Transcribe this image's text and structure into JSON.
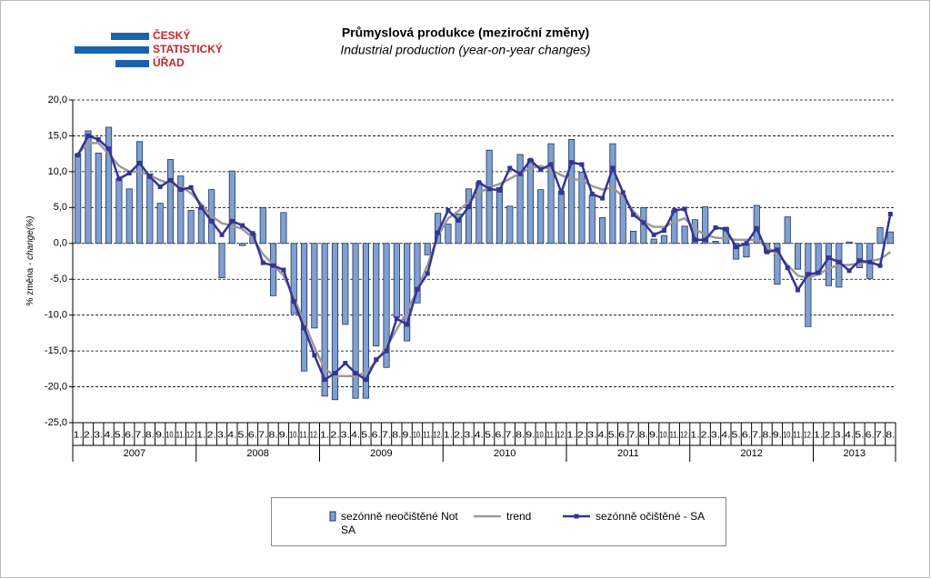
{
  "logo": [
    "ČESKÝ",
    "STATISTICKÝ",
    "ÚŘAD"
  ],
  "chart_data": {
    "type": "bar-line",
    "title": "Průmyslová produkce (meziroční změny)",
    "subtitle": "Industrial production (year-on-year changes)",
    "ylabel": [
      "% změna - ",
      "change(%)"
    ],
    "categories": [
      "1.",
      "2.",
      "3.",
      "4.",
      "5.",
      "6.",
      "7.",
      "8.",
      "9.",
      "10.",
      "11.",
      "12.",
      "1.",
      "2.",
      "3.",
      "4.",
      "5.",
      "6.",
      "7.",
      "8.",
      "9.",
      "10.",
      "11.",
      "12.",
      "1.",
      "2.",
      "3.",
      "4.",
      "5.",
      "6.",
      "7.",
      "8.",
      "9.",
      "10.",
      "11.",
      "12.",
      "1.",
      "2.",
      "3.",
      "4.",
      "5.",
      "6.",
      "7.",
      "8.",
      "9.",
      "10.",
      "11.",
      "12.",
      "1.",
      "2.",
      "3.",
      "4.",
      "5.",
      "6.",
      "7.",
      "8.",
      "9.",
      "10.",
      "11.",
      "12.",
      "1.",
      "2.",
      "3.",
      "4.",
      "5.",
      "6.",
      "7.",
      "8.",
      "9.",
      "10.",
      "11.",
      "12.",
      "1.",
      "2.",
      "3.",
      "4.",
      "5.",
      "6.",
      "7.",
      "8."
    ],
    "years": [
      "2007",
      "2008",
      "2009",
      "2010",
      "2011",
      "2012",
      "2013"
    ],
    "ylim": [
      -25,
      20
    ],
    "yticks": [
      {
        "value": -25,
        "label": "-25,0"
      },
      {
        "value": -20,
        "label": "-20,0"
      },
      {
        "value": -15,
        "label": "-15,0"
      },
      {
        "value": -10,
        "label": "-10,0"
      },
      {
        "value": -5,
        "label": "-5,0"
      },
      {
        "value": 0,
        "label": "0,0"
      },
      {
        "value": 5,
        "label": "5,0"
      },
      {
        "value": 10,
        "label": "10,0"
      },
      {
        "value": 15,
        "label": "15,0"
      },
      {
        "value": 20,
        "label": "20,0"
      }
    ],
    "grid": true,
    "series": [
      {
        "name": "sezónně neočištěné Not SA",
        "kind": "bar",
        "color": "#819fd0",
        "values": [
          12.5,
          15.7,
          12.6,
          16.2,
          9.0,
          7.6,
          14.2,
          9.7,
          5.6,
          11.7,
          9.4,
          4.6,
          5.0,
          7.5,
          -4.8,
          10.1,
          -0.3,
          1.4,
          5.0,
          -7.3,
          4.3,
          -9.8,
          -17.8,
          -11.8,
          -21.3,
          -21.8,
          -11.3,
          -21.6,
          -21.6,
          -14.3,
          -17.3,
          -10.3,
          -13.6,
          -8.3,
          -1.6,
          4.2,
          2.7,
          4.1,
          7.6,
          8.5,
          13.0,
          7.8,
          5.2,
          12.4,
          11.7,
          7.5,
          13.9,
          7.3,
          14.5,
          9.9,
          6.7,
          3.6,
          13.9,
          6.7,
          1.7,
          5.0,
          0.6,
          1.1,
          4.6,
          2.4,
          3.3,
          5.1,
          0.3,
          2.2,
          -2.2,
          -1.9,
          5.3,
          -1.3,
          -5.7,
          3.7,
          -3.6,
          -11.6,
          -4.3,
          -5.9,
          -6.1,
          0.2,
          -3.4,
          -4.9,
          2.2,
          1.6
        ]
      },
      {
        "name": "trend",
        "kind": "line",
        "color": "#9a9a9a",
        "values": [
          12.5,
          14.0,
          14.0,
          12.5,
          10.8,
          10.0,
          10.0,
          9.5,
          8.8,
          8.3,
          8.0,
          7.0,
          5.5,
          3.8,
          2.8,
          2.5,
          2.0,
          0.8,
          -1.5,
          -3.0,
          -4.5,
          -7.5,
          -11.0,
          -14.5,
          -17.5,
          -18.5,
          -18.5,
          -18.5,
          -18.0,
          -16.5,
          -14.5,
          -12.0,
          -9.5,
          -6.5,
          -3.0,
          1.0,
          3.5,
          4.5,
          5.8,
          7.0,
          7.8,
          8.3,
          9.0,
          9.8,
          10.5,
          10.8,
          10.3,
          9.5,
          9.0,
          8.8,
          8.0,
          7.5,
          7.8,
          6.5,
          4.5,
          3.0,
          2.3,
          2.3,
          3.0,
          3.5,
          2.0,
          1.2,
          0.8,
          0.7,
          0.5,
          0.5,
          0.5,
          -0.5,
          -1.5,
          -3.0,
          -4.5,
          -4.8,
          -4.3,
          -3.5,
          -3.0,
          -3.0,
          -2.8,
          -2.5,
          -2.2,
          -1.2
        ]
      },
      {
        "name": "sezónně očištěné - SA",
        "kind": "line-marker",
        "color": "#343496",
        "values": [
          12.3,
          15.0,
          14.5,
          13.2,
          9.0,
          9.8,
          11.2,
          9.3,
          7.9,
          8.8,
          7.5,
          7.8,
          5.0,
          3.1,
          1.2,
          3.1,
          2.5,
          1.4,
          -2.7,
          -3.1,
          -3.7,
          -8.1,
          -11.8,
          -15.6,
          -19.0,
          -18.1,
          -16.7,
          -18.1,
          -19.0,
          -16.2,
          -15.0,
          -10.5,
          -11.3,
          -6.4,
          -4.2,
          1.5,
          4.6,
          3.2,
          5.1,
          8.5,
          7.6,
          7.4,
          10.5,
          9.7,
          11.6,
          10.3,
          11.0,
          7.1,
          11.3,
          11.0,
          6.9,
          6.3,
          10.5,
          7.1,
          4.0,
          2.9,
          1.2,
          1.8,
          4.6,
          4.8,
          0.5,
          0.5,
          2.2,
          2.0,
          -0.5,
          0.0,
          2.1,
          -1.2,
          -0.9,
          -3.4,
          -6.5,
          -4.3,
          -4.1,
          -2.0,
          -2.6,
          -3.8,
          -2.4,
          -2.6,
          -3.1,
          4.1
        ]
      }
    ]
  }
}
